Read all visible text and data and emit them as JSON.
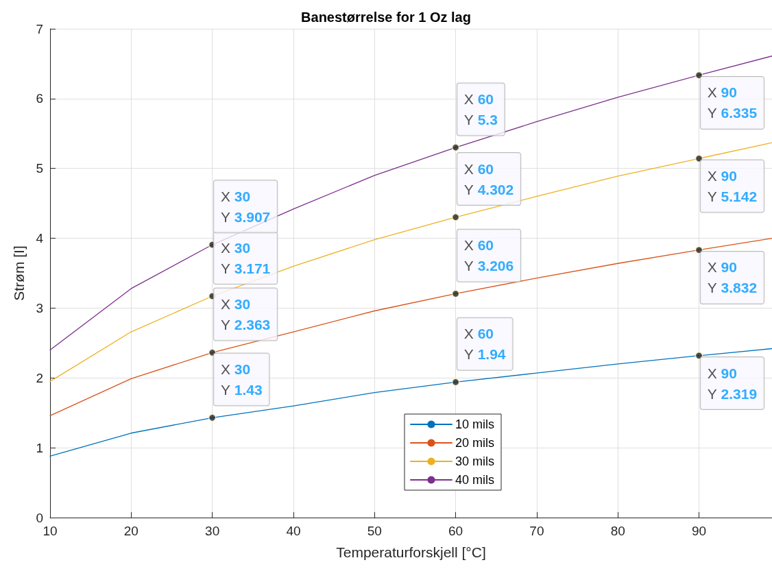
{
  "chart_data": {
    "type": "line",
    "title": "Banestørrelse for 1 Oz lag",
    "xlabel": "Temperaturforskjell [°C]",
    "ylabel": "Strøm [I]",
    "x": [
      10,
      20,
      30,
      40,
      50,
      60,
      70,
      80,
      90,
      99
    ],
    "series": [
      {
        "name": "10 mils",
        "color": "#0072bd",
        "values": [
          0.88,
          1.21,
          1.43,
          1.6,
          1.79,
          1.94,
          2.07,
          2.2,
          2.319,
          2.42
        ]
      },
      {
        "name": "20 mils",
        "color": "#d95319",
        "values": [
          1.46,
          1.99,
          2.363,
          2.66,
          2.96,
          3.206,
          3.43,
          3.64,
          3.832,
          4.0
        ]
      },
      {
        "name": "30 mils",
        "color": "#edb120",
        "values": [
          1.95,
          2.66,
          3.171,
          3.6,
          3.98,
          4.302,
          4.6,
          4.89,
          5.142,
          5.37
        ]
      },
      {
        "name": "40 mils",
        "color": "#7e2f8e",
        "values": [
          2.4,
          3.28,
          3.907,
          4.42,
          4.9,
          5.3,
          5.67,
          6.02,
          6.335,
          6.61
        ]
      }
    ],
    "annotations": [
      {
        "text": "X 30\nY 1.43",
        "x": 30,
        "y": 1.43
      },
      {
        "text": "X 30\nY 2.363",
        "x": 30,
        "y": 2.363
      },
      {
        "text": "X 30\nY 3.171",
        "x": 30,
        "y": 3.171
      },
      {
        "text": "X 30\nY 3.907",
        "x": 30,
        "y": 3.907
      },
      {
        "text": "X 60\nY 1.94",
        "x": 60,
        "y": 1.94
      },
      {
        "text": "X 60\nY 3.206",
        "x": 60,
        "y": 3.206
      },
      {
        "text": "X 60\nY 4.302",
        "x": 60,
        "y": 4.302
      },
      {
        "text": "X 60\nY 5.3",
        "x": 60,
        "y": 5.3
      },
      {
        "text": "X 90\nY 2.319",
        "x": 90,
        "y": 2.319
      },
      {
        "text": "X 90\nY 3.832",
        "x": 90,
        "y": 3.832
      },
      {
        "text": "X 90\nY 5.142",
        "x": 90,
        "y": 5.142
      },
      {
        "text": "X 90\nY 6.335",
        "x": 90,
        "y": 6.335
      }
    ],
    "xlim": [
      10,
      99
    ],
    "xticks": [
      10,
      20,
      30,
      40,
      50,
      60,
      70,
      80,
      90
    ],
    "ylim": [
      0,
      7
    ],
    "yticks": [
      0,
      1,
      2,
      3,
      4,
      5,
      6,
      7
    ],
    "grid": true,
    "legend": "bottom",
    "marker": "none",
    "line_style": "solid"
  }
}
